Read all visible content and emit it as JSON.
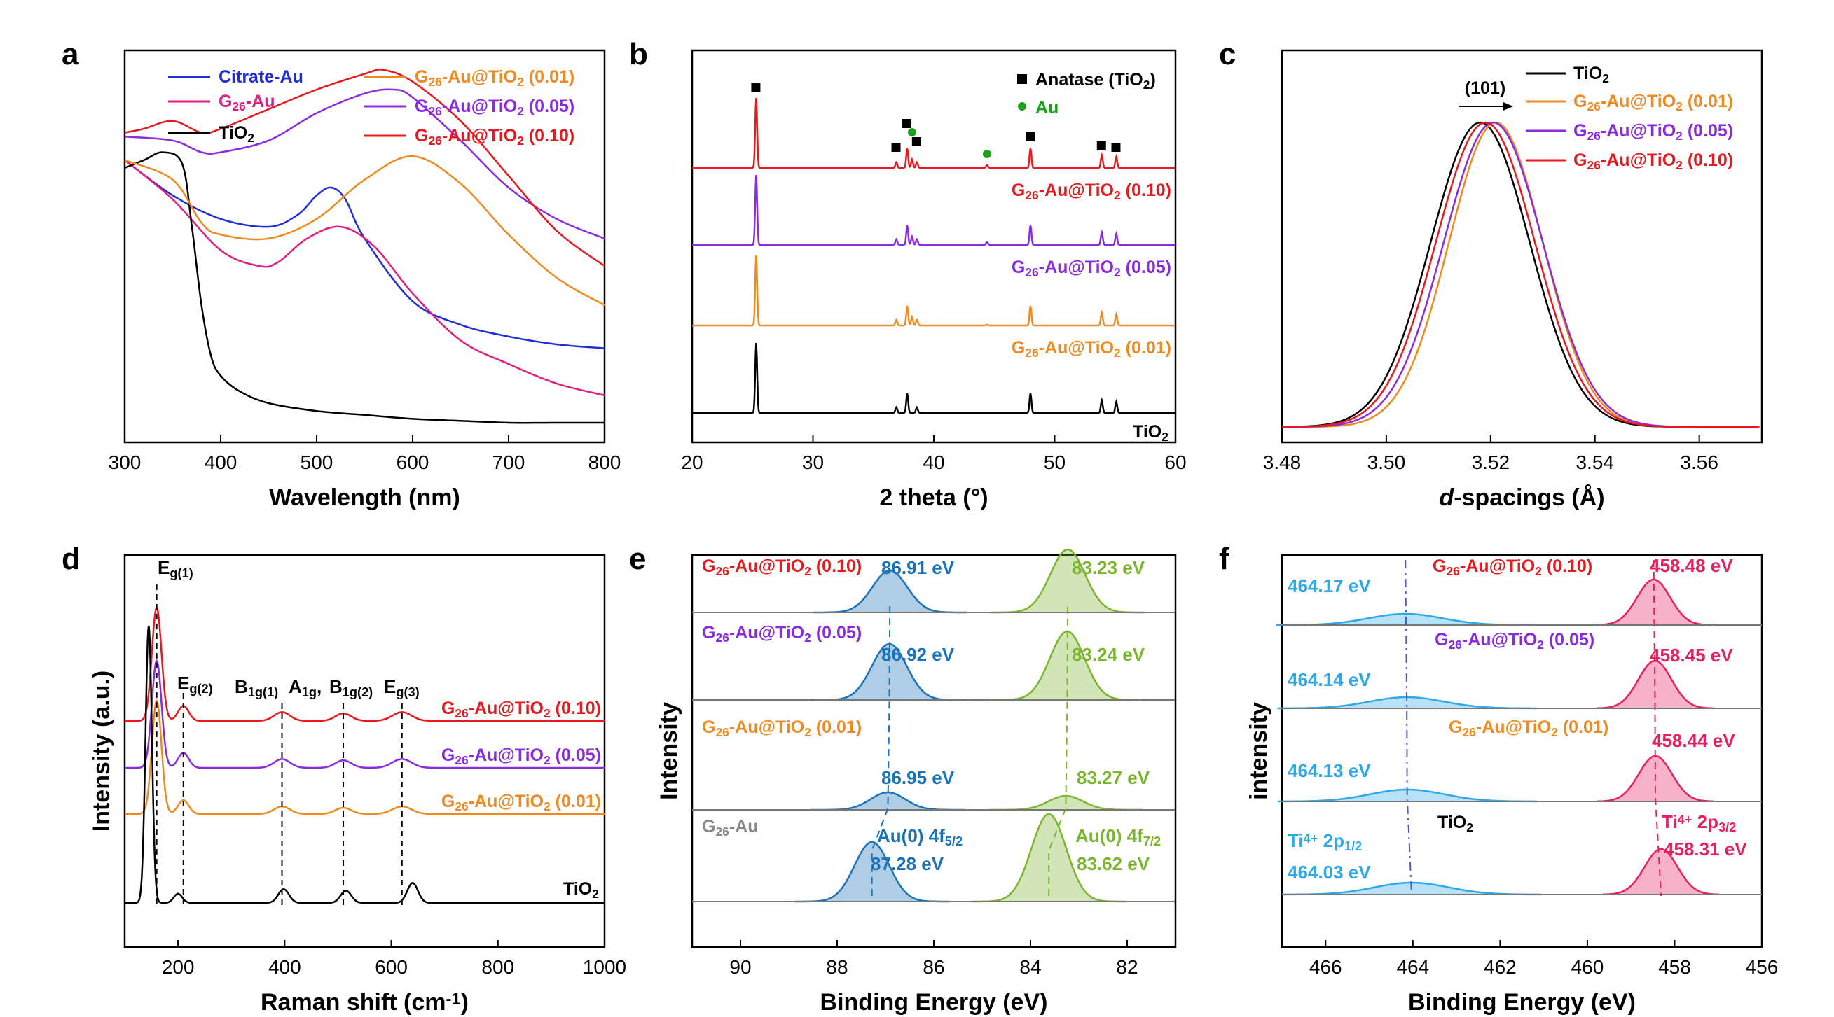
{
  "colors": {
    "black": "#000000",
    "blue": "#1f2ed8",
    "magenta": "#e0207f",
    "orange": "#f08a20",
    "purple": "#8a2be2",
    "red": "#e8191e",
    "xps_blue": "#1a72b8",
    "xps_green": "#7ab52e",
    "ti_blue": "#2ea8e6",
    "ti_pink": "#e82060",
    "gray": "#888888",
    "base_gray": "#777777"
  },
  "chart_data": [
    {
      "panel": "a",
      "type": "line",
      "xlabel": "Wavelength (nm)",
      "ylabel": "",
      "xlim": [
        300,
        800
      ],
      "xticks": [
        "300",
        "400",
        "500",
        "600",
        "700",
        "800"
      ],
      "legend": [
        {
          "label": "Citrate-Au",
          "color": "blue"
        },
        {
          "label": "G26-Au",
          "color": "magenta"
        },
        {
          "label": "TiO2",
          "color": "black"
        },
        {
          "label": "G26-Au@TiO2 (0.01)",
          "color": "orange"
        },
        {
          "label": "G26-Au@TiO2 (0.05)",
          "color": "purple"
        },
        {
          "label": "G26-Au@TiO2 (0.10)",
          "color": "red"
        }
      ],
      "series": [
        {
          "name": "Citrate-Au",
          "x": [
            300,
            350,
            400,
            450,
            480,
            500,
            515,
            530,
            550,
            600,
            650,
            700,
            750,
            800
          ],
          "y": [
            0.72,
            0.63,
            0.57,
            0.55,
            0.58,
            0.63,
            0.65,
            0.62,
            0.52,
            0.36,
            0.3,
            0.27,
            0.25,
            0.24
          ]
        },
        {
          "name": "G26-Au",
          "x": [
            300,
            350,
            400,
            440,
            460,
            490,
            525,
            560,
            600,
            650,
            700,
            750,
            800
          ],
          "y": [
            0.72,
            0.62,
            0.49,
            0.45,
            0.46,
            0.52,
            0.55,
            0.5,
            0.38,
            0.26,
            0.2,
            0.15,
            0.12
          ]
        },
        {
          "name": "TiO2",
          "x": [
            300,
            320,
            340,
            360,
            370,
            380,
            390,
            400,
            420,
            450,
            500,
            550,
            600,
            650,
            700,
            750,
            800
          ],
          "y": [
            0.7,
            0.72,
            0.74,
            0.71,
            0.55,
            0.35,
            0.22,
            0.17,
            0.13,
            0.1,
            0.08,
            0.07,
            0.06,
            0.055,
            0.05,
            0.05,
            0.05
          ]
        },
        {
          "name": "G26-Au@TiO2 (0.01)",
          "x": [
            300,
            350,
            380,
            400,
            450,
            500,
            550,
            600,
            650,
            700,
            750,
            800
          ],
          "y": [
            0.72,
            0.67,
            0.56,
            0.53,
            0.52,
            0.57,
            0.67,
            0.73,
            0.66,
            0.53,
            0.42,
            0.35
          ]
        },
        {
          "name": "G26-Au@TiO2 (0.05)",
          "x": [
            300,
            350,
            380,
            400,
            450,
            500,
            550,
            580,
            600,
            650,
            700,
            750,
            800
          ],
          "y": [
            0.78,
            0.77,
            0.74,
            0.74,
            0.77,
            0.84,
            0.89,
            0.9,
            0.88,
            0.77,
            0.65,
            0.57,
            0.52
          ]
        },
        {
          "name": "G26-Au@TiO2 (0.10)",
          "x": [
            300,
            320,
            350,
            380,
            400,
            450,
            500,
            550,
            570,
            600,
            650,
            700,
            750,
            800
          ],
          "y": [
            0.79,
            0.8,
            0.82,
            0.79,
            0.8,
            0.85,
            0.9,
            0.94,
            0.95,
            0.92,
            0.82,
            0.68,
            0.54,
            0.45
          ]
        }
      ]
    },
    {
      "panel": "b",
      "type": "line",
      "xlabel": "2 theta (°)",
      "ylabel": "",
      "xlim": [
        20,
        60
      ],
      "xticks": [
        "20",
        "30",
        "40",
        "50",
        "60"
      ],
      "legend": [
        {
          "label": "Anatase (TiO2)",
          "marker": "square",
          "color": "black"
        },
        {
          "label": "Au",
          "marker": "circle",
          "color": "#1aa31a"
        }
      ],
      "series_labels": [
        "G26-Au@TiO2 (0.10)",
        "G26-Au@TiO2 (0.05)",
        "G26-Au@TiO2 (0.01)",
        "TiO2"
      ],
      "anatase_peaks": [
        25.3,
        36.9,
        37.8,
        38.6,
        48.0,
        53.9,
        55.1
      ],
      "au_peaks": [
        38.2,
        44.4
      ],
      "peaks": [
        {
          "x": 25.3,
          "h": 1.0
        },
        {
          "x": 36.9,
          "h": 0.08
        },
        {
          "x": 37.8,
          "h": 0.28
        },
        {
          "x": 38.2,
          "h": 0.12
        },
        {
          "x": 38.6,
          "h": 0.08
        },
        {
          "x": 44.4,
          "h": 0.04
        },
        {
          "x": 48.0,
          "h": 0.28
        },
        {
          "x": 53.9,
          "h": 0.18
        },
        {
          "x": 55.1,
          "h": 0.16
        }
      ]
    },
    {
      "panel": "c",
      "type": "line",
      "xlabel": "d-spacings (Å)",
      "ylabel": "",
      "xlim": [
        3.48,
        3.572
      ],
      "xticks": [
        "3.48",
        "3.50",
        "3.52",
        "3.54",
        "3.56"
      ],
      "annotation": "(101)",
      "legend": [
        {
          "label": "TiO2",
          "color": "black"
        },
        {
          "label": "G26-Au@TiO2 (0.01)",
          "color": "orange"
        },
        {
          "label": "G26-Au@TiO2 (0.05)",
          "color": "purple"
        },
        {
          "label": "G26-Au@TiO2 (0.10)",
          "color": "red"
        }
      ],
      "series": [
        {
          "name": "TiO2",
          "center": 3.518,
          "width": 0.0095
        },
        {
          "name": "G26-Au@TiO2 (0.01)",
          "center": 3.521,
          "width": 0.009
        },
        {
          "name": "G26-Au@TiO2 (0.05)",
          "center": 3.5205,
          "width": 0.0095
        },
        {
          "name": "G26-Au@TiO2 (0.10)",
          "center": 3.519,
          "width": 0.0095
        }
      ]
    },
    {
      "panel": "d",
      "type": "line",
      "xlabel": "Raman shift (cm-1)",
      "ylabel": "Intensity (a.u.)",
      "xlim": [
        100,
        1000
      ],
      "xticks": [
        "200",
        "400",
        "600",
        "800",
        "1000"
      ],
      "peak_labels": [
        "Eg(1)",
        "Eg(2)",
        "B1g(1)",
        "A1g,",
        "B1g(2)",
        "Eg(3)"
      ],
      "series_labels": [
        "G26-Au@TiO2 (0.10)",
        "G26-Au@TiO2 (0.05)",
        "G26-Au@TiO2 (0.01)",
        "TiO2"
      ],
      "dashed_lines": [
        160,
        210,
        395,
        510,
        620
      ],
      "series": [
        {
          "name": "G26-Au@TiO2 (0.10)",
          "peaks": [
            [
              160,
              0.9,
              9
            ],
            [
              210,
              0.12,
              10
            ],
            [
              395,
              0.07,
              15
            ],
            [
              510,
              0.06,
              15
            ],
            [
              620,
              0.07,
              18
            ]
          ]
        },
        {
          "name": "G26-Au@TiO2 (0.05)",
          "peaks": [
            [
              160,
              0.85,
              9
            ],
            [
              210,
              0.12,
              10
            ],
            [
              395,
              0.07,
              15
            ],
            [
              510,
              0.06,
              15
            ],
            [
              620,
              0.07,
              18
            ]
          ]
        },
        {
          "name": "G26-Au@TiO2 (0.01)",
          "peaks": [
            [
              160,
              0.9,
              9
            ],
            [
              210,
              0.11,
              10
            ],
            [
              395,
              0.06,
              15
            ],
            [
              510,
              0.05,
              15
            ],
            [
              620,
              0.06,
              18
            ]
          ]
        },
        {
          "name": "TiO2",
          "peaks": [
            [
              145,
              1.8,
              6
            ],
            [
              200,
              0.06,
              8
            ],
            [
              398,
              0.09,
              10
            ],
            [
              515,
              0.08,
              10
            ],
            [
              640,
              0.13,
              10
            ]
          ]
        }
      ]
    },
    {
      "panel": "e",
      "type": "area",
      "xlabel": "Binding Energy (eV)",
      "ylabel": "Intensity",
      "xlim": [
        91,
        81
      ],
      "xticks": [
        "90",
        "88",
        "86",
        "84",
        "82"
      ],
      "doublet_labels": [
        "Au(0) 4f5/2",
        "Au(0) 4f7/2"
      ],
      "series": [
        {
          "name": "G26-Au@TiO2 (0.10)",
          "p1": 86.91,
          "p2": 83.23,
          "h1": 0.32,
          "h2": 0.55,
          "label1": "86.91 eV",
          "label2": "83.23 eV"
        },
        {
          "name": "G26-Au@TiO2 (0.05)",
          "p1": 86.92,
          "p2": 83.24,
          "h1": 0.42,
          "h2": 0.65,
          "label1": "86.92 eV",
          "label2": "83.24 eV"
        },
        {
          "name": "G26-Au@TiO2 (0.01)",
          "p1": 86.95,
          "p2": 83.27,
          "h1": 0.1,
          "h2": 0.12,
          "label1": "86.95 eV",
          "label2": "83.27 eV"
        },
        {
          "name": "G26-Au",
          "p1": 87.28,
          "p2": 83.62,
          "h1": 0.55,
          "h2": 0.78,
          "label1": "87.28 eV",
          "label2": "83.62 eV"
        }
      ]
    },
    {
      "panel": "f",
      "type": "area",
      "xlabel": "Binding Energy (eV)",
      "ylabel": "intensity",
      "xlim": [
        467,
        456
      ],
      "xticks": [
        "466",
        "464",
        "462",
        "460",
        "458",
        "456"
      ],
      "doublet_labels": [
        "Ti4+ 2p1/2",
        "Ti4+ 2p3/2"
      ],
      "series": [
        {
          "name": "G26-Au@TiO2 (0.10)",
          "p1": 464.17,
          "p2": 458.48,
          "label1": "464.17 eV",
          "label2": "458.48 eV"
        },
        {
          "name": "G26-Au@TiO2 (0.05)",
          "p1": 464.14,
          "p2": 458.45,
          "label1": "464.14 eV",
          "label2": "458.45 eV"
        },
        {
          "name": "G26-Au@TiO2 (0.01)",
          "p1": 464.13,
          "p2": 458.44,
          "label1": "464.13 eV",
          "label2": "458.44 eV"
        },
        {
          "name": "TiO2",
          "p1": 464.03,
          "p2": 458.31,
          "label1": "464.03 eV",
          "label2": "458.31 eV"
        }
      ]
    }
  ]
}
